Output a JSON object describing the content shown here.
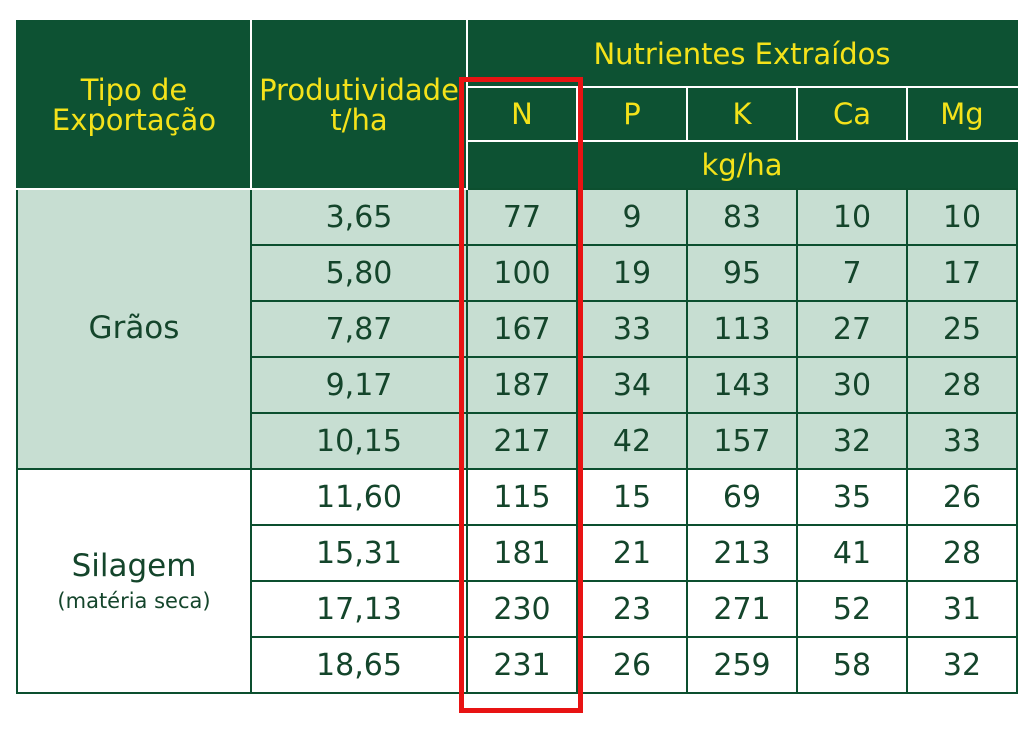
{
  "header": {
    "export_type": "Tipo de Exportação",
    "productivity": "Produtividade t/ha",
    "nutrients_group": "Nutrientes Extraídos",
    "nutrient_columns": [
      "N",
      "P",
      "K",
      "Ca",
      "Mg"
    ],
    "unit": "kg/ha"
  },
  "groups": [
    {
      "name": "Grãos",
      "note": "",
      "rows": [
        {
          "produtividade": "3,65",
          "N": "77",
          "P": "9",
          "K": "83",
          "Ca": "10",
          "Mg": "10"
        },
        {
          "produtividade": "5,80",
          "N": "100",
          "P": "19",
          "K": "95",
          "Ca": "7",
          "Mg": "17"
        },
        {
          "produtividade": "7,87",
          "N": "167",
          "P": "33",
          "K": "113",
          "Ca": "27",
          "Mg": "25"
        },
        {
          "produtividade": "9,17",
          "N": "187",
          "P": "34",
          "K": "143",
          "Ca": "30",
          "Mg": "28"
        },
        {
          "produtividade": "10,15",
          "N": "217",
          "P": "42",
          "K": "157",
          "Ca": "32",
          "Mg": "33"
        }
      ]
    },
    {
      "name": "Silagem",
      "note": "(matéria seca)",
      "rows": [
        {
          "produtividade": "11,60",
          "N": "115",
          "P": "15",
          "K": "69",
          "Ca": "35",
          "Mg": "26"
        },
        {
          "produtividade": "15,31",
          "N": "181",
          "P": "21",
          "K": "213",
          "Ca": "41",
          "Mg": "28"
        },
        {
          "produtividade": "17,13",
          "N": "230",
          "P": "23",
          "K": "271",
          "Ca": "52",
          "Mg": "31"
        },
        {
          "produtividade": "18,65",
          "N": "231",
          "P": "26",
          "K": "259",
          "Ca": "58",
          "Mg": "32"
        }
      ]
    }
  ],
  "highlighted_column": "N",
  "colors": {
    "header_bg": "#0d5233",
    "header_text": "#f4e21a",
    "graos_bg": "#c7ded2",
    "silagem_bg": "#ffffff",
    "text": "#14452b",
    "highlight": "#e81313"
  }
}
